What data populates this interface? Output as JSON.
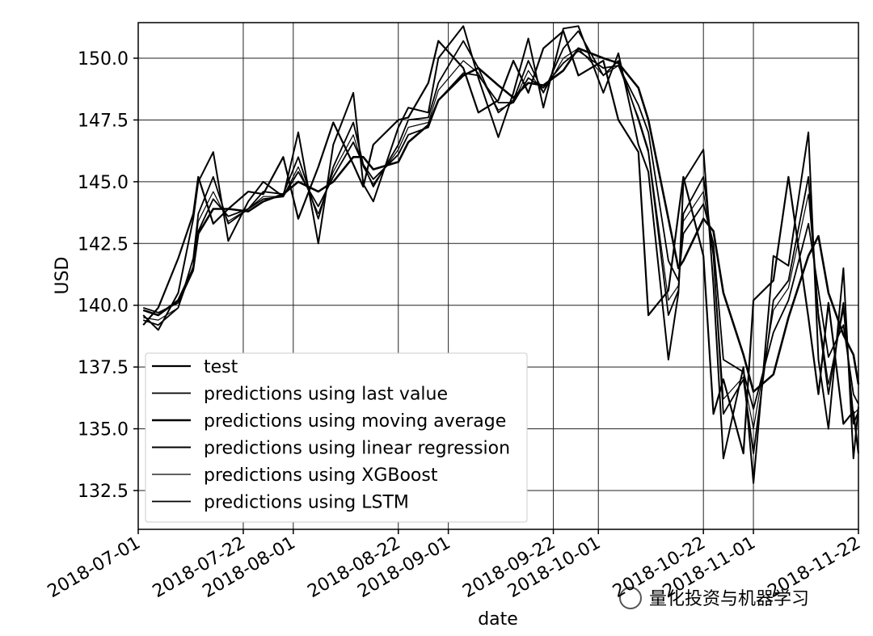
{
  "chart_data": {
    "type": "line",
    "xlabel": "date",
    "ylabel": "USD",
    "watermark": "量化投资与机器学习",
    "grid": true,
    "legend": "lower left",
    "xlim": [
      "2018-07-01",
      "2018-11-22"
    ],
    "ylim": [
      130.93,
      151.44
    ],
    "xticks": [
      "2018-07-01",
      "2018-07-22",
      "2018-08-01",
      "2018-08-22",
      "2018-09-01",
      "2018-09-22",
      "2018-10-01",
      "2018-10-22",
      "2018-11-01",
      "2018-11-22"
    ],
    "yticks": [
      132.5,
      {
        "value": 135,
        "label": "135.0"
      },
      {
        "value": 137.5,
        "label": "137.5"
      },
      {
        "value": 140,
        "label": "140.0"
      },
      {
        "value": 142.5,
        "label": "142.5"
      },
      {
        "value": 145,
        "label": "145.0"
      },
      {
        "value": 147.5,
        "label": "147.5"
      },
      {
        "value": 150,
        "label": "150.0"
      }
    ],
    "x": [
      "2018-07-02",
      "2018-07-05",
      "2018-07-09",
      "2018-07-12",
      "2018-07-13",
      "2018-07-16",
      "2018-07-19",
      "2018-07-23",
      "2018-07-26",
      "2018-07-30",
      "2018-08-02",
      "2018-08-06",
      "2018-08-09",
      "2018-08-13",
      "2018-08-15",
      "2018-08-17",
      "2018-08-22",
      "2018-08-24",
      "2018-08-28",
      "2018-08-30",
      "2018-09-04",
      "2018-09-07",
      "2018-09-11",
      "2018-09-14",
      "2018-09-17",
      "2018-09-20",
      "2018-09-24",
      "2018-09-27",
      "2018-10-02",
      "2018-10-05",
      "2018-10-09",
      "2018-10-11",
      "2018-10-15",
      "2018-10-17",
      "2018-10-18",
      "2018-10-22",
      "2018-10-24",
      "2018-10-26",
      "2018-10-30",
      "2018-11-01",
      "2018-11-05",
      "2018-11-08",
      "2018-11-12",
      "2018-11-14",
      "2018-11-16",
      "2018-11-19",
      "2018-11-21",
      "2018-11-22"
    ],
    "series": [
      {
        "name": "test",
        "color": "#000000",
        "values": [
          139.2,
          139.9,
          141.9,
          143.7,
          145.2,
          143.3,
          143.9,
          144.6,
          144.5,
          146.0,
          143.5,
          145.6,
          147.4,
          145.7,
          144.8,
          146.5,
          147.5,
          147.6,
          149.0,
          150.7,
          149.6,
          147.8,
          148.3,
          149.9,
          148.6,
          150.4,
          151.1,
          149.3,
          149.9,
          147.5,
          146.2,
          139.6,
          140.6,
          143.7,
          145.2,
          142.0,
          135.6,
          137.0,
          134.0,
          140.2,
          141.0,
          145.2,
          139.5,
          136.4,
          140.1,
          135.2,
          135.7,
          134.0
        ]
      },
      {
        "name": "predictions using last value",
        "color": "#000000",
        "values": [
          139.4,
          139.2,
          139.9,
          141.9,
          143.7,
          145.2,
          143.3,
          143.9,
          144.6,
          144.5,
          146.0,
          143.5,
          145.6,
          147.4,
          145.7,
          144.8,
          146.5,
          147.5,
          147.6,
          149.0,
          150.7,
          149.6,
          147.8,
          148.3,
          149.9,
          148.6,
          150.4,
          151.1,
          149.3,
          149.9,
          147.5,
          146.2,
          139.6,
          140.6,
          143.7,
          145.2,
          142.0,
          135.6,
          137.0,
          134.0,
          140.2,
          141.0,
          145.2,
          139.5,
          136.4,
          140.1,
          135.2,
          135.7
        ]
      },
      {
        "name": "predictions using moving average",
        "color": "#000000",
        "values": [
          139.8,
          139.6,
          140.2,
          141.5,
          142.9,
          143.9,
          143.9,
          143.8,
          144.2,
          144.5,
          145.0,
          144.6,
          145.0,
          146.0,
          146.0,
          145.5,
          145.8,
          146.6,
          147.3,
          148.3,
          149.3,
          149.6,
          148.9,
          148.4,
          149.0,
          148.9,
          149.5,
          150.4,
          150.0,
          149.8,
          148.8,
          147.5,
          143.5,
          141.5,
          141.8,
          143.5,
          143.0,
          140.5,
          138.0,
          136.5,
          137.2,
          139.5,
          142.0,
          142.8,
          140.5,
          138.8,
          138.0,
          136.8
        ]
      },
      {
        "name": "predictions using linear regression",
        "color": "#000000",
        "values": [
          139.6,
          139.0,
          140.5,
          143.5,
          145.0,
          146.2,
          142.6,
          144.2,
          145.0,
          144.4,
          147.0,
          142.5,
          146.5,
          148.6,
          144.9,
          144.2,
          147.2,
          148.0,
          147.8,
          150.0,
          151.3,
          149.2,
          146.8,
          148.6,
          150.8,
          148.0,
          151.2,
          151.3,
          148.6,
          150.2,
          146.5,
          145.4,
          137.8,
          140.5,
          145.0,
          146.3,
          140.8,
          133.8,
          137.5,
          132.8,
          142.0,
          141.6,
          147.0,
          137.8,
          135.0,
          141.5,
          133.8,
          135.9
        ]
      },
      {
        "name": "predictions using XGBoost",
        "color": "#000000",
        "values": [
          139.5,
          139.4,
          139.9,
          141.6,
          143.4,
          144.6,
          143.4,
          143.9,
          144.4,
          144.4,
          145.6,
          143.7,
          145.4,
          146.9,
          145.6,
          144.9,
          146.3,
          147.2,
          147.4,
          148.7,
          149.9,
          149.4,
          147.9,
          148.2,
          149.5,
          148.6,
          150.0,
          150.4,
          149.3,
          149.7,
          147.6,
          146.3,
          140.2,
          140.8,
          143.4,
          144.6,
          142.0,
          136.2,
          137.1,
          135.0,
          139.8,
          140.7,
          144.5,
          139.7,
          136.8,
          139.8,
          135.6,
          135.8
        ]
      },
      {
        "name": "predictions using LSTM",
        "color": "#000000",
        "values": [
          139.9,
          139.7,
          140.1,
          141.4,
          143.0,
          144.3,
          143.6,
          143.9,
          144.3,
          144.4,
          145.4,
          144.0,
          145.2,
          146.6,
          145.7,
          145.1,
          146.1,
          146.9,
          147.2,
          148.3,
          149.4,
          149.3,
          148.2,
          148.2,
          149.2,
          148.8,
          149.8,
          150.3,
          149.6,
          149.7,
          148.1,
          147.0,
          141.8,
          141.0,
          142.9,
          144.1,
          142.5,
          137.8,
          137.3,
          135.8,
          138.9,
          140.2,
          143.3,
          140.6,
          137.9,
          139.2,
          136.4,
          136.0
        ]
      }
    ]
  }
}
